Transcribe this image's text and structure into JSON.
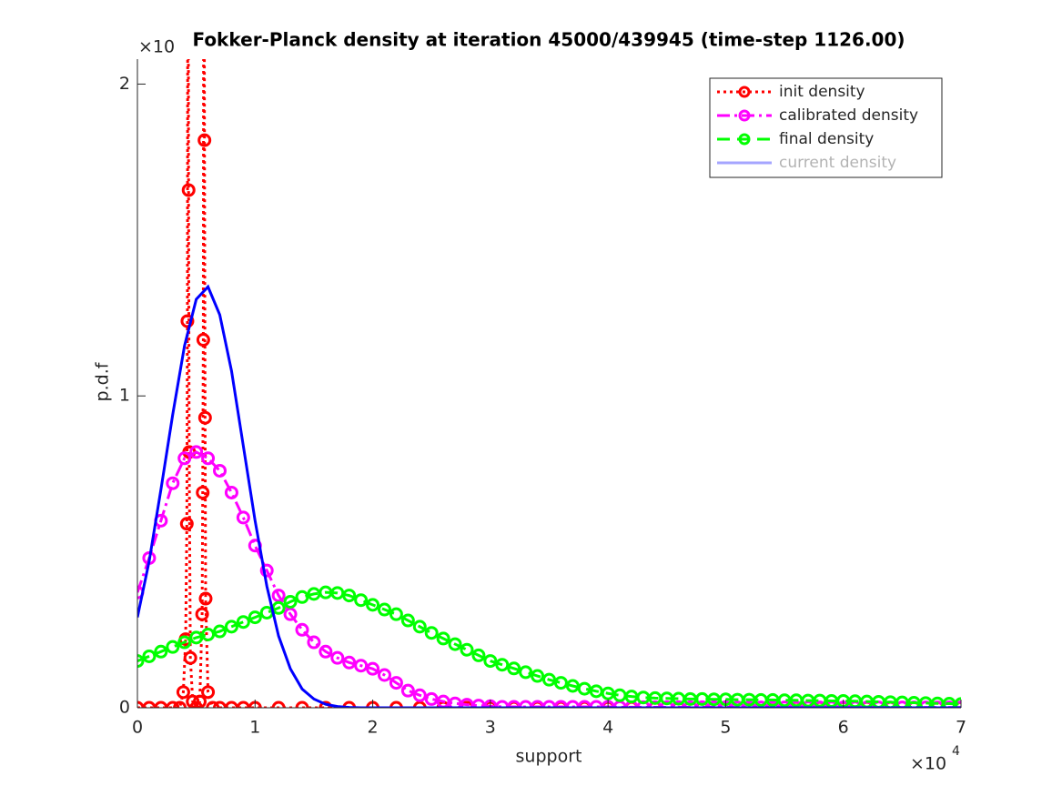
{
  "chart_data": {
    "type": "line",
    "title": "Fokker-Planck density at iteration 45000/439945 (time-step 1126.00)",
    "x_label": "support",
    "y_label": "p.d.f",
    "x_exponent": {
      "base": "×10",
      "power": "4"
    },
    "y_exponent": "×10",
    "xlim": [
      0,
      7
    ],
    "ylim": [
      0,
      2.08
    ],
    "xticks": [
      0,
      1,
      2,
      3,
      4,
      5,
      6,
      7
    ],
    "yticks": [
      0,
      1,
      2
    ],
    "legend": "northeast",
    "x": [
      0,
      0.1,
      0.2,
      0.3,
      0.4,
      0.5,
      0.6,
      0.7,
      0.8,
      0.9,
      1.0,
      1.1,
      1.2,
      1.3,
      1.4,
      1.5,
      1.6,
      1.7,
      1.8,
      1.9,
      2.0,
      2.1,
      2.2,
      2.3,
      2.4,
      2.5,
      2.6,
      2.7,
      2.8,
      2.9,
      3.0,
      3.1,
      3.2,
      3.3,
      3.4,
      3.5,
      3.6,
      3.7,
      3.8,
      3.9,
      4.0,
      4.1,
      4.2,
      4.3,
      4.4,
      4.5,
      4.6,
      4.7,
      4.8,
      4.9,
      5.0,
      5.1,
      5.2,
      5.3,
      5.4,
      5.5,
      5.6,
      5.7,
      5.8,
      5.9,
      6.0,
      6.1,
      6.2,
      6.3,
      6.4,
      6.5,
      6.6,
      6.7,
      6.8,
      6.9,
      7.0
    ],
    "series": [
      {
        "name": "init density",
        "color": "#ff0000",
        "linestyle": "dotted",
        "marker": "o",
        "x": [
          0,
          0.1,
          0.2,
          0.3,
          0.36,
          0.39,
          0.41,
          0.42,
          0.425,
          0.43,
          0.435,
          0.44,
          0.45,
          0.47,
          0.5,
          0.53,
          0.55,
          0.555,
          0.56,
          0.565,
          0.57,
          0.575,
          0.58,
          0.6,
          0.64,
          0.7,
          0.8,
          0.9,
          1.0,
          1.2,
          1.4,
          1.6,
          1.8,
          2.0,
          2.2,
          2.4,
          2.6,
          2.8,
          3.0,
          3.2,
          3.4,
          3.6,
          3.8,
          4.0,
          4.2,
          4.4,
          4.6,
          4.8,
          5.0,
          5.2,
          5.4,
          5.6,
          5.8,
          6.0,
          6.2,
          6.4,
          6.6,
          6.8,
          7.0
        ],
        "values": [
          0,
          0,
          0,
          0,
          0,
          0.05,
          0.22,
          0.59,
          1.24,
          3.2,
          1.66,
          0.82,
          0.16,
          0.02,
          0,
          0.02,
          0.3,
          0.69,
          1.18,
          3.2,
          1.82,
          0.93,
          0.35,
          0.05,
          0,
          0,
          0,
          0,
          0,
          0,
          0,
          0,
          0,
          0,
          0,
          0,
          0,
          0,
          0,
          0,
          0,
          0,
          0,
          0,
          0,
          0,
          0,
          0,
          0,
          0,
          0,
          0,
          0,
          0,
          0,
          0,
          0,
          0,
          0
        ]
      },
      {
        "name": "calibrated density",
        "color": "#ff00ff",
        "linestyle": "dashdot",
        "marker": "o",
        "values": [
          0.37,
          0.48,
          0.6,
          0.72,
          0.8,
          0.82,
          0.8,
          0.76,
          0.69,
          0.61,
          0.52,
          0.44,
          0.36,
          0.3,
          0.25,
          0.21,
          0.18,
          0.16,
          0.145,
          0.135,
          0.125,
          0.105,
          0.08,
          0.055,
          0.04,
          0.028,
          0.02,
          0.014,
          0.01,
          0.007,
          0.005,
          0.003,
          0.003,
          0.003,
          0.003,
          0.003,
          0.003,
          0.003,
          0.003,
          0.003,
          0.003,
          0.002,
          0.002,
          0.002,
          0.002,
          0.002,
          0.002,
          0.002,
          0.002,
          0.002,
          0.002,
          0.001,
          0.001,
          0.001,
          0.001,
          0.001,
          0.001,
          0.001,
          0.001,
          0.001,
          0.001,
          0.001,
          0.001,
          0.001,
          0.001,
          0.001,
          0.001,
          0.001,
          0.001,
          0.001,
          0.001
        ]
      },
      {
        "name": "final density",
        "color": "#00ff00",
        "linestyle": "dashed",
        "marker": "o",
        "values": [
          0.15,
          0.165,
          0.18,
          0.195,
          0.21,
          0.225,
          0.235,
          0.245,
          0.26,
          0.275,
          0.29,
          0.305,
          0.32,
          0.34,
          0.355,
          0.365,
          0.37,
          0.368,
          0.36,
          0.345,
          0.33,
          0.315,
          0.3,
          0.28,
          0.26,
          0.24,
          0.222,
          0.204,
          0.186,
          0.168,
          0.15,
          0.138,
          0.126,
          0.114,
          0.102,
          0.09,
          0.08,
          0.07,
          0.061,
          0.053,
          0.046,
          0.04,
          0.036,
          0.033,
          0.031,
          0.03,
          0.029,
          0.028,
          0.028,
          0.027,
          0.027,
          0.026,
          0.026,
          0.025,
          0.025,
          0.024,
          0.024,
          0.023,
          0.023,
          0.022,
          0.022,
          0.021,
          0.02,
          0.019,
          0.018,
          0.017,
          0.016,
          0.015,
          0.014,
          0.013,
          0.012
        ]
      },
      {
        "name": "current density",
        "color": "#0000ff",
        "linestyle": "solid",
        "marker": "none",
        "values": [
          0.29,
          0.47,
          0.7,
          0.94,
          1.16,
          1.31,
          1.35,
          1.26,
          1.08,
          0.84,
          0.6,
          0.39,
          0.23,
          0.125,
          0.06,
          0.028,
          0.011,
          0.004,
          0.001,
          0,
          0,
          0,
          0,
          0,
          0,
          0,
          0,
          0,
          0,
          0,
          0,
          0,
          0,
          0,
          0,
          0,
          0,
          0,
          0,
          0,
          0,
          0,
          0,
          0,
          0,
          0,
          0,
          0,
          0,
          0,
          0,
          0,
          0,
          0,
          0,
          0,
          0,
          0,
          0,
          0,
          0,
          0,
          0,
          0,
          0,
          0,
          0,
          0,
          0,
          0,
          0
        ]
      }
    ]
  }
}
